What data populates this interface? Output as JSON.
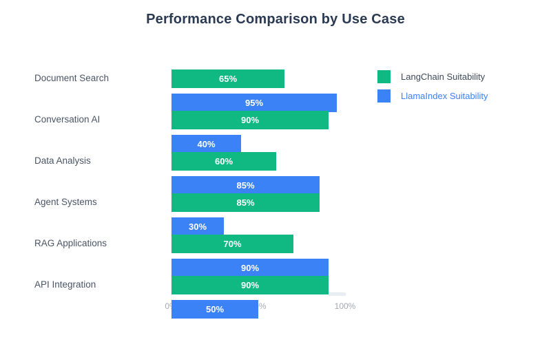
{
  "title": "Performance Comparison by Use Case",
  "chart_data": {
    "type": "bar",
    "orientation": "horizontal",
    "title": "Performance Comparison by Use Case",
    "categories": [
      "Document Search",
      "Conversation AI",
      "Data Analysis",
      "Agent Systems",
      "RAG Applications",
      "API Integration"
    ],
    "series": [
      {
        "name": "LangChain Suitability",
        "color": "#10b981",
        "values": [
          65,
          90,
          60,
          85,
          70,
          90
        ]
      },
      {
        "name": "LlamaIndex Suitability",
        "color": "#3b82f6",
        "values": [
          95,
          40,
          85,
          30,
          90,
          50
        ]
      }
    ],
    "value_suffix": "%",
    "xlim": [
      0,
      100
    ],
    "xticks": [
      "0%",
      "50%",
      "100%"
    ],
    "grid": false,
    "legend_position": "right",
    "bar_label_color": "#ffffff"
  },
  "legend": {
    "items": [
      {
        "label": "LangChain Suitability",
        "swatch_color": "#10b981",
        "text_color": "#3f4a5a"
      },
      {
        "label": "LlamaIndex Suitability",
        "swatch_color": "#3b82f6",
        "text_color": "#3b82f6"
      }
    ]
  }
}
